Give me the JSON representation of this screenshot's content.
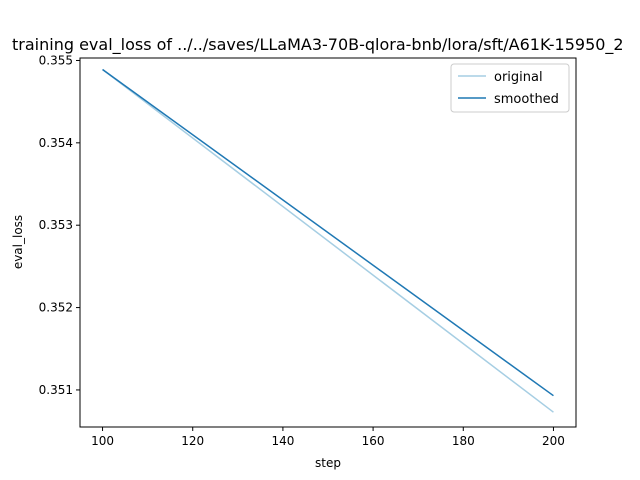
{
  "chart_data": {
    "type": "line",
    "title": "training eval_loss of ../../saves/LLaMA3-70B-qlora-bnb/lora/sft/A61K-15950_2",
    "xlabel": "step",
    "ylabel": "eval_loss",
    "xlim": [
      95,
      205
    ],
    "ylim": [
      0.35055,
      0.35503
    ],
    "xticks": [
      100,
      120,
      140,
      160,
      180,
      200
    ],
    "yticks": [
      0.351,
      0.352,
      0.353,
      0.354,
      0.355
    ],
    "xtick_labels": [
      "100",
      "120",
      "140",
      "160",
      "180",
      "200"
    ],
    "ytick_labels": [
      "0.351",
      "0.352",
      "0.353",
      "0.354",
      "0.355"
    ],
    "grid": false,
    "legend_position": "top-right",
    "series": [
      {
        "name": "original",
        "color": "#a6cee3",
        "x": [
          100,
          200
        ],
        "y": [
          0.35489,
          0.35073
        ]
      },
      {
        "name": "smoothed",
        "color": "#1f78b4",
        "x": [
          100,
          200
        ],
        "y": [
          0.35489,
          0.35093
        ]
      }
    ]
  }
}
